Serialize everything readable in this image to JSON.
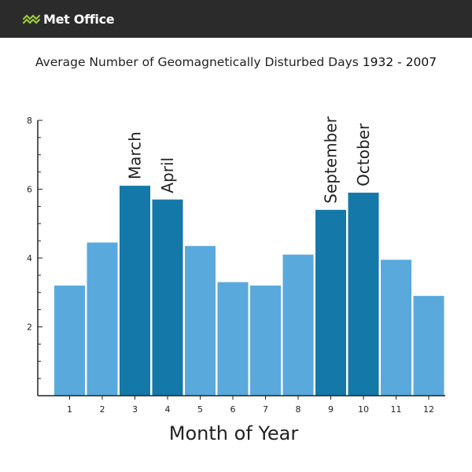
{
  "header": {
    "logo_text": "Met Office",
    "logo_icon": "met-office-chevrons-icon",
    "background_color": "#2b2b2b",
    "logo_color": "#9acd32"
  },
  "chart_data": {
    "type": "bar",
    "title_main": "Average Number of Geomagnetically Disturbed Days",
    "title_years": "1932 - 2007",
    "xlabel": "Month of Year",
    "ylabel": "",
    "categories": [
      "1",
      "2",
      "3",
      "4",
      "5",
      "6",
      "7",
      "8",
      "9",
      "10",
      "11",
      "12"
    ],
    "values": [
      3.2,
      4.45,
      6.1,
      5.7,
      4.35,
      3.3,
      3.2,
      4.1,
      5.4,
      5.9,
      3.95,
      2.9
    ],
    "highlighted": [
      false,
      false,
      true,
      true,
      false,
      false,
      false,
      false,
      true,
      true,
      false,
      false
    ],
    "ylim": [
      0,
      8
    ],
    "yticks": [
      "2",
      "4",
      "6",
      "8"
    ],
    "annotations": [
      {
        "text": "March",
        "category": "3"
      },
      {
        "text": "April",
        "category": "4"
      },
      {
        "text": "September",
        "category": "9"
      },
      {
        "text": "October",
        "category": "10"
      }
    ],
    "colors": {
      "normal": "#5aa9dc",
      "highlight": "#1478a8"
    },
    "grid": false,
    "legend": "none"
  }
}
